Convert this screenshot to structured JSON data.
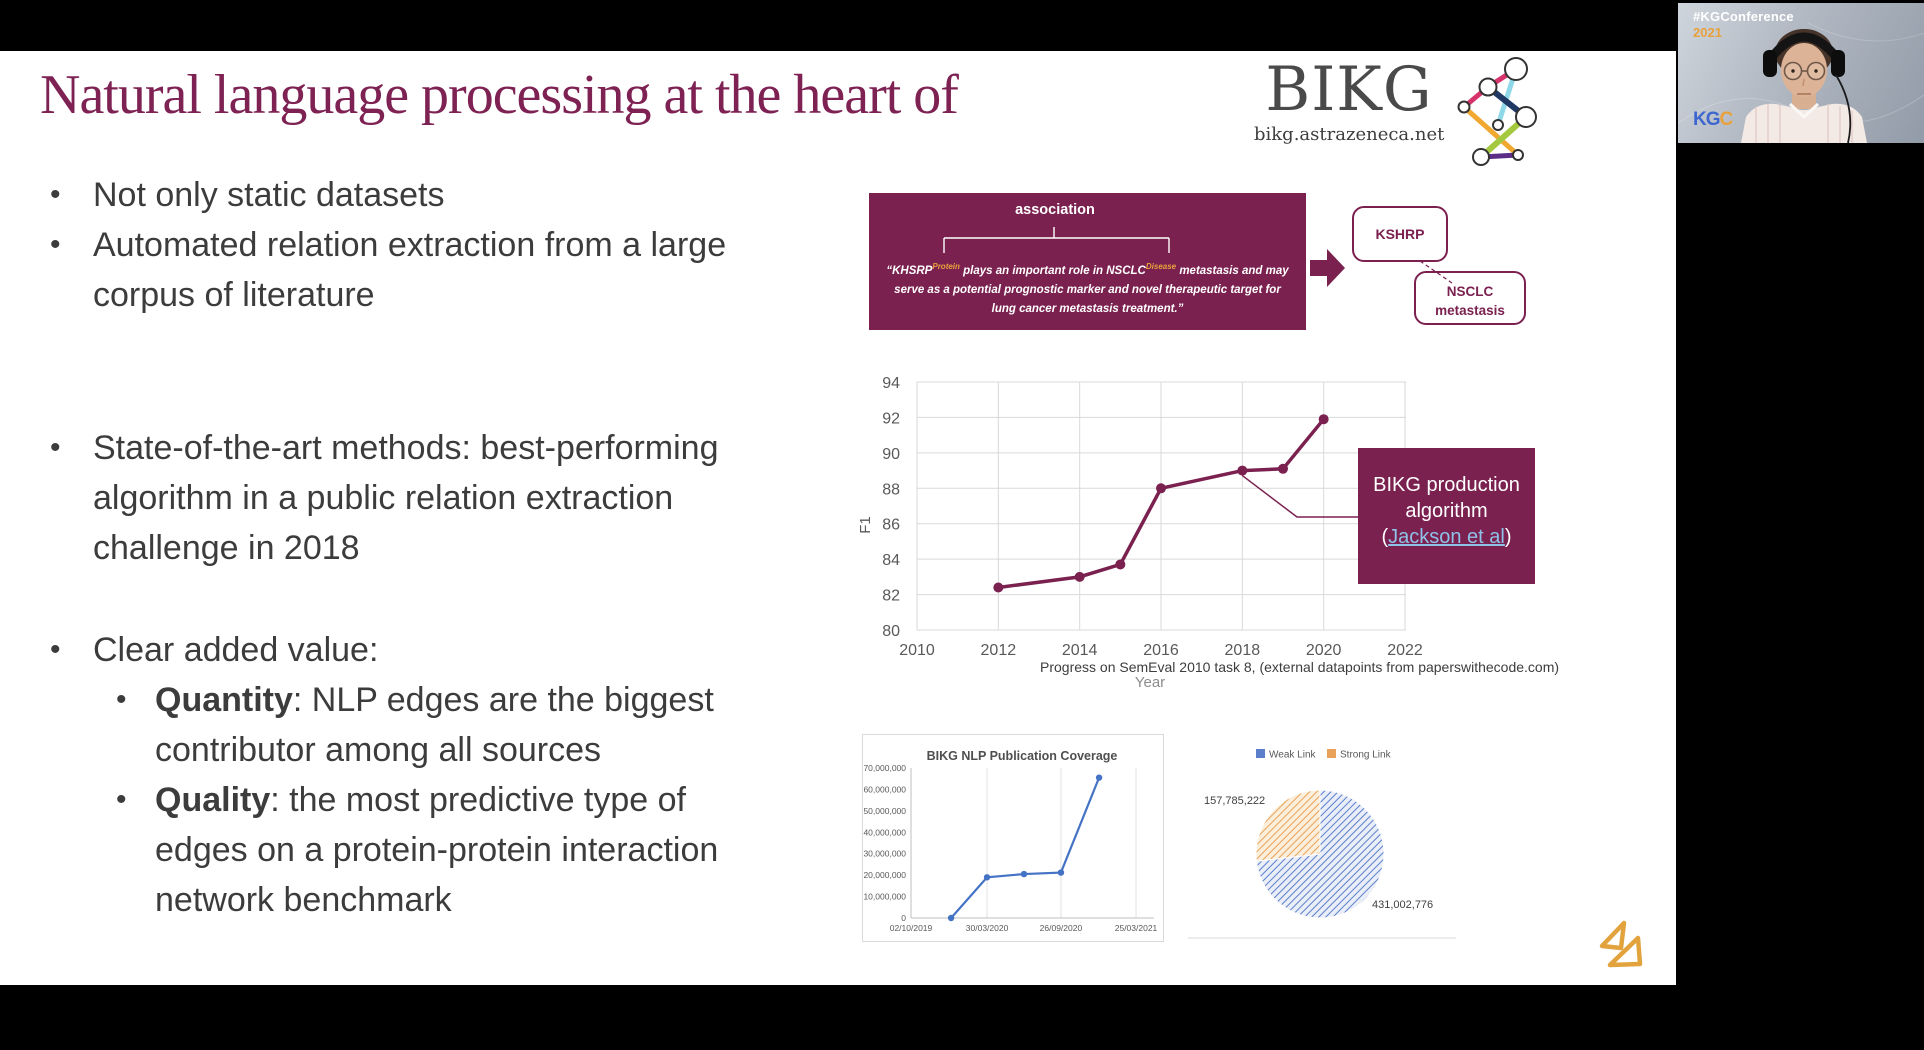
{
  "slide": {
    "title": "Natural language processing at the heart of",
    "brand": {
      "name": "BIKG",
      "domain": "bikg.astrazeneca.net"
    },
    "bullets": {
      "b1": [
        "Not only static datasets"
      ],
      "b2": [
        "Automated relation extraction from a large",
        "corpus of literature"
      ],
      "b3": [
        "State-of-the-art methods: best-performing",
        "algorithm in a public relation extraction",
        "challenge in 2018"
      ],
      "b4": [
        "Clear added value:"
      ],
      "b5_bold": "Quantity",
      "b5_lines": [
        ": NLP edges are the biggest",
        "contributor among all sources"
      ],
      "b6_bold": "Quality",
      "b6_lines": [
        ": the most predictive type of",
        "edges on a protein-protein interaction",
        "network benchmark"
      ]
    },
    "association": {
      "label": "association",
      "quote": {
        "l1_a": "“KHSRP",
        "l1_sup1": "Protein",
        "l1_b": " plays an important role in NSCLC",
        "l1_sup2": "Disease",
        "l1_c": " metastasis and may",
        "l2": "serve as a potential prognostic marker and novel therapeutic target for",
        "l3": "lung cancer metastasis treatment.”"
      },
      "entity1": "KSHRP",
      "entity2_lines": [
        "NSCLC",
        "metastasis"
      ]
    }
  },
  "webcam": {
    "hashtag": "#KGConference",
    "year": "2021",
    "logo": "KG",
    "logo_accent": "C"
  },
  "colors": {
    "maroon": "#7B2150",
    "sup_orange": "#E8A33D",
    "link_blue": "#8FC2E8",
    "az_gold": "#E2A33D"
  },
  "chart_data": [
    {
      "type": "line",
      "xlabel": "Year",
      "ylabel": "F1",
      "points": [
        [
          2012,
          82.4
        ],
        [
          2014,
          83
        ],
        [
          2015,
          83.7
        ],
        [
          2016,
          88
        ],
        [
          2018,
          89
        ],
        [
          2019,
          89.1
        ],
        [
          2020,
          91.9
        ]
      ],
      "xticks": [
        2010,
        2012,
        2014,
        2016,
        2018,
        2020,
        2022
      ],
      "yticks": [
        80,
        82,
        84,
        86,
        88,
        90,
        92,
        94
      ],
      "xlim": [
        2010,
        2022
      ],
      "ylim": [
        80,
        94
      ],
      "grid": true,
      "line_color": "#7B2150",
      "annotation": {
        "text": "BIKG production algorithm",
        "link_prefix": "(",
        "link_text": "Jackson et al",
        "link_suffix": ")",
        "target": [
          2018,
          89
        ]
      },
      "caption": "Progress on SemEval 2010 task 8, (external datapoints from paperswithecode.com)"
    },
    {
      "type": "line",
      "title": "BIKG NLP Publication Coverage",
      "xticks": [
        {
          "label": "02/10/2019",
          "f": 0
        },
        {
          "label": "30/03/2020",
          "f": 0.313
        },
        {
          "label": "26/09/2020",
          "f": 0.617
        },
        {
          "label": "25/03/2021",
          "f": 0.926
        }
      ],
      "points": [
        {
          "f": 0.165,
          "v": 0
        },
        {
          "f": 0.313,
          "v": 19000000
        },
        {
          "f": 0.465,
          "v": 20500000
        },
        {
          "f": 0.617,
          "v": 21200000
        },
        {
          "f": 0.774,
          "v": 65500000
        }
      ],
      "yticks": [
        0,
        10000000,
        20000000,
        30000000,
        40000000,
        50000000,
        60000000,
        70000000
      ],
      "ylim": [
        0,
        70000000
      ],
      "line_color": "#4472C4"
    },
    {
      "type": "pie",
      "labels": [
        "Weak Link",
        "Strong Link"
      ],
      "values": [
        431002776,
        157785222
      ],
      "value_labels": [
        "431,002,776",
        "157,785,222"
      ],
      "colors": [
        "#5b7fca",
        "#e8a25a"
      ],
      "base_colors": [
        "#e9eef8",
        "#fbeeda"
      ],
      "legend_position": "top",
      "hatch": "diagonal"
    }
  ]
}
